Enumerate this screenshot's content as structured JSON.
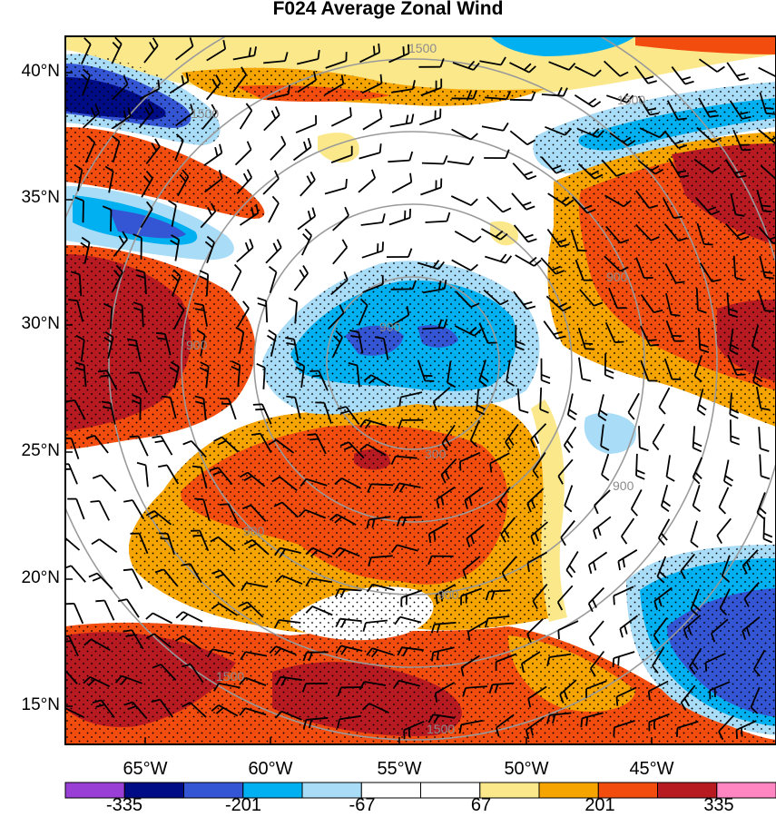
{
  "title": "F024 Average Zonal Wind",
  "lat_labels": [
    "40°N",
    "35°N",
    "30°N",
    "25°N",
    "20°N",
    "15°N"
  ],
  "lon_labels": [
    "65°W",
    "60°W",
    "55°W",
    "50°W",
    "45°W"
  ],
  "colorbar": {
    "colors": [
      "#9a3fd6",
      "#000b86",
      "#3455d4",
      "#00b0f0",
      "#a8dcf7",
      "#ffffff",
      "#ffffff",
      "#fbe88b",
      "#f5a400",
      "#f24d0f",
      "#b81a22",
      "#ff86c0"
    ],
    "labels": [
      "-335",
      "-201",
      "-67",
      "67",
      "201",
      "335"
    ]
  },
  "contour_labels": [
    "1500",
    "1500",
    "1500",
    "900",
    "900",
    "900",
    "300",
    "900",
    "900",
    "900",
    "1500",
    "1500"
  ],
  "colors": {
    "deep_red": "#b81a22",
    "red": "#f24d0f",
    "orange": "#f5a400",
    "yellow": "#fbe88b",
    "light_blue": "#a8dcf7",
    "cyan": "#00b0f0",
    "blue": "#3455d4",
    "navy": "#000b86"
  }
}
